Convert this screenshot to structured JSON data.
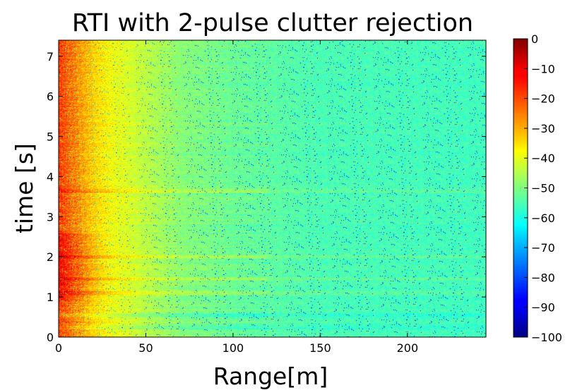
{
  "chart_data": {
    "type": "heatmap",
    "title": "RTI with 2-pulse clutter rejection",
    "xlabel": "Range[m]",
    "ylabel": "time [s]",
    "xlim": [
      0,
      245
    ],
    "ylim": [
      0,
      7.4
    ],
    "x_ticks": [
      0,
      50,
      100,
      150,
      200
    ],
    "x_tick_labels": [
      "0",
      "50",
      "100",
      "150",
      "200"
    ],
    "y_ticks": [
      0,
      1,
      2,
      3,
      4,
      5,
      6,
      7
    ],
    "y_tick_labels": [
      "0",
      "1",
      "2",
      "3",
      "4",
      "5",
      "6",
      "7"
    ],
    "colormap": "jet",
    "colorbar": {
      "range": [
        -100,
        0
      ],
      "ticks": [
        0,
        -10,
        -20,
        -30,
        -40,
        -50,
        -60,
        -70,
        -80,
        -90,
        -100
      ],
      "tick_labels": [
        "0",
        "−10",
        "−20",
        "−30",
        "−40",
        "−50",
        "−60",
        "−70",
        "−80",
        "−90",
        "−100"
      ]
    },
    "value_profile": {
      "range_m": [
        0,
        5,
        10,
        20,
        30,
        50,
        70,
        100,
        150,
        245
      ],
      "level_db": [
        -18,
        -22,
        -26,
        -33,
        -38,
        -44,
        -49,
        -52,
        -55,
        -56
      ]
    },
    "strong_time_band_s": [
      0.9,
      2.6
    ],
    "bright_time_rows_s": [
      3.65,
      2.0,
      1.45,
      1.1
    ],
    "dark_time_rows_s": [
      0.25,
      0.55
    ]
  }
}
